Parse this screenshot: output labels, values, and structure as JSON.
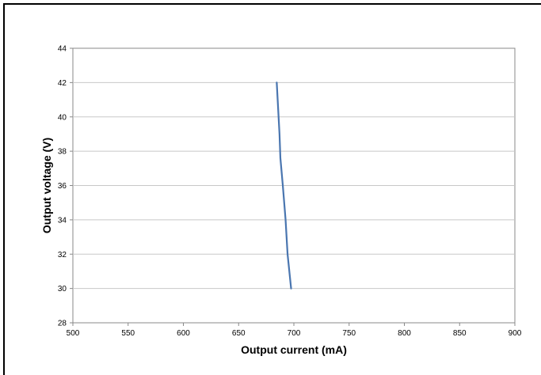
{
  "chart_data": {
    "type": "line",
    "title": "",
    "xlabel": "Output current (mA)",
    "ylabel": "Output voltage (V)",
    "xlim": [
      500,
      900
    ],
    "ylim": [
      28,
      44
    ],
    "xticks": [
      500,
      550,
      600,
      650,
      700,
      750,
      800,
      850,
      900
    ],
    "yticks": [
      28,
      30,
      32,
      34,
      36,
      38,
      40,
      42,
      44
    ],
    "grid": "horizontal",
    "legend": "none",
    "series": [
      {
        "color": "#4a76b0",
        "points": [
          [
            684.5,
            42.0
          ],
          [
            687.0,
            39.0
          ],
          [
            687.8,
            37.6
          ],
          [
            690.0,
            36.0
          ],
          [
            692.5,
            34.0
          ],
          [
            694.3,
            32.0
          ],
          [
            697.5,
            30.0
          ]
        ]
      }
    ]
  }
}
